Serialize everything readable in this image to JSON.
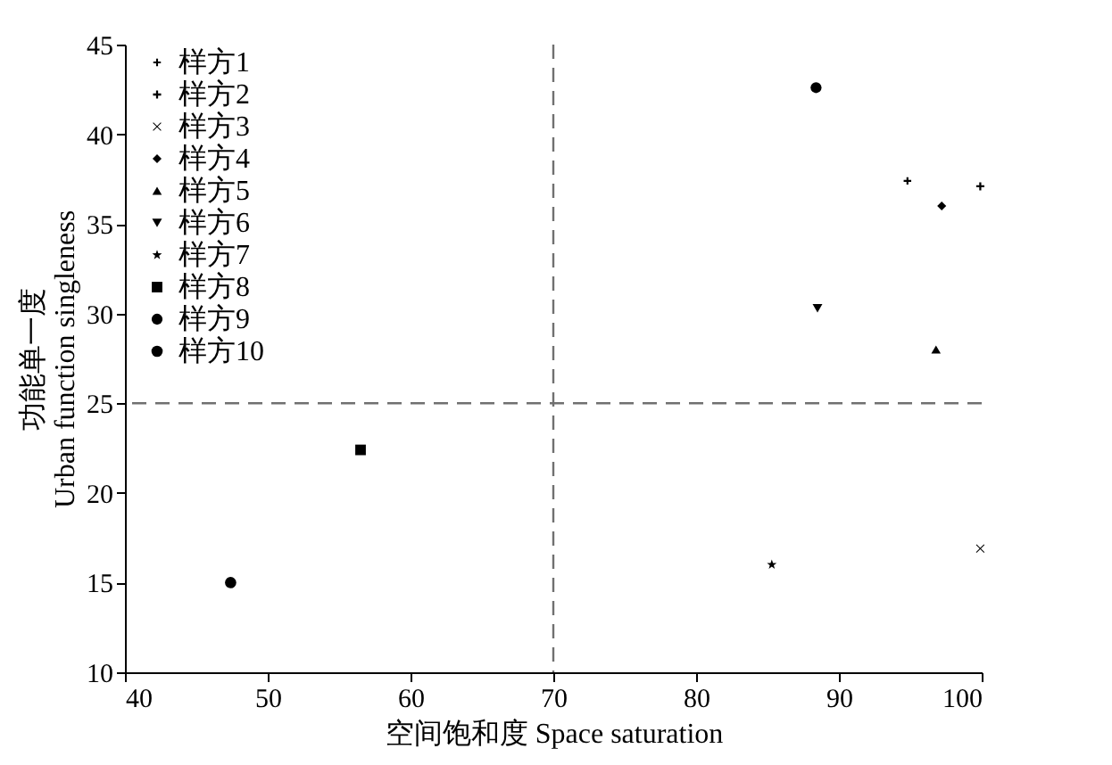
{
  "chart_data": {
    "type": "scatter",
    "xlabel": "空间饱和度 Space saturation",
    "ylabel": "功能单一度\nUrban function singleness",
    "xlim": [
      40,
      100
    ],
    "xticks": [
      40,
      50,
      60,
      70,
      80,
      90,
      100
    ],
    "ylim": [
      10,
      45
    ],
    "yticks": [
      10,
      15,
      20,
      25,
      30,
      35,
      40,
      45
    ],
    "grid": false,
    "legend": "top left",
    "ref_lines": [
      {
        "axis": "x",
        "value": 70,
        "color": "#707070",
        "line_style": "dashed"
      },
      {
        "axis": "y",
        "value": 25,
        "color": "#707070",
        "line_style": "dashed"
      }
    ],
    "series": [
      {
        "name": "样方1",
        "color": "#000000",
        "marker": "plus",
        "x": [
          94.8
        ],
        "values": [
          37.4
        ]
      },
      {
        "name": "样方2",
        "color": "#000000",
        "marker": "plus",
        "x": [
          99.9
        ],
        "values": [
          37.1
        ]
      },
      {
        "name": "样方3",
        "color": "#000000",
        "marker": "x",
        "x": [
          99.9
        ],
        "values": [
          16.9
        ]
      },
      {
        "name": "样方4",
        "color": "#000000",
        "marker": "diamond",
        "x": [
          97.2
        ],
        "values": [
          36.0
        ]
      },
      {
        "name": "样方5",
        "color": "#000000",
        "marker": "triangle",
        "x": [
          96.8
        ],
        "values": [
          28.0
        ]
      },
      {
        "name": "样方6",
        "color": "#000000",
        "marker": "triangle-down",
        "x": [
          88.5
        ],
        "values": [
          30.3
        ]
      },
      {
        "name": "样方7",
        "color": "#000000",
        "marker": "star",
        "x": [
          85.3
        ],
        "values": [
          16.0
        ]
      },
      {
        "name": "样方8",
        "color": "#000000",
        "marker": "square",
        "x": [
          56.5
        ],
        "values": [
          22.4
        ]
      },
      {
        "name": "样方9",
        "color": "#000000",
        "marker": "circle",
        "x": [
          88.4
        ],
        "values": [
          42.6
        ]
      },
      {
        "name": "样方10",
        "color": "#000000",
        "marker": "circle",
        "x": [
          47.4
        ],
        "values": [
          15.0
        ]
      }
    ]
  }
}
